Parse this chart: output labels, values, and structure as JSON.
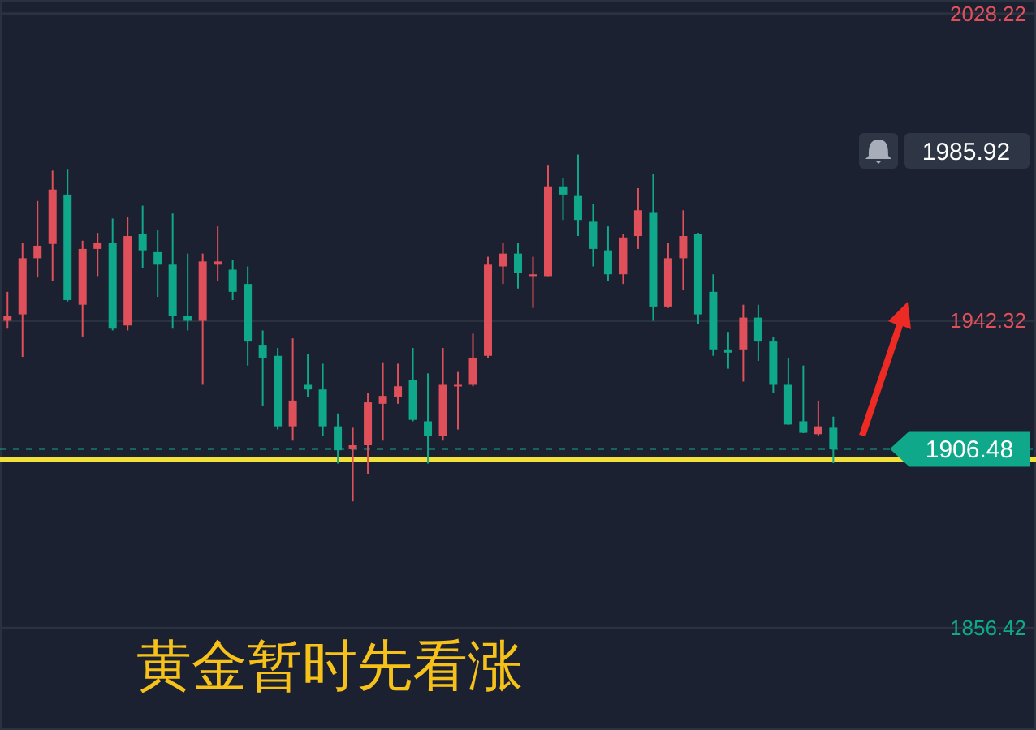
{
  "chart_data": {
    "type": "candlestick",
    "categories": [
      null,
      null,
      null,
      null,
      null,
      null,
      null,
      null,
      null,
      null,
      null,
      null,
      null,
      null,
      null,
      null,
      null,
      null,
      null,
      null,
      null,
      null,
      null,
      null,
      null,
      null,
      null,
      null,
      null,
      null,
      null,
      null,
      null,
      null,
      null,
      null,
      null,
      null,
      null,
      null,
      null,
      null,
      null,
      null,
      null,
      null,
      null,
      null,
      null,
      null,
      null,
      null,
      null,
      null,
      null,
      null,
      null,
      null,
      null,
      null,
      null,
      null,
      null,
      null,
      null,
      null,
      null,
      null,
      null
    ],
    "ohlc": [
      [
        1942.3,
        1950.4,
        1940.1,
        1943.7
      ],
      [
        1944.1,
        1964.2,
        1932.2,
        1959.8
      ],
      [
        1959.8,
        1975.8,
        1954.4,
        1963.3
      ],
      [
        1963.8,
        1984.3,
        1953.5,
        1979.0
      ],
      [
        1977.6,
        1984.8,
        1947.7,
        1948.1
      ],
      [
        1946.8,
        1964.7,
        1937.9,
        1962.4
      ],
      [
        1962.4,
        1966.9,
        1954.8,
        1964.2
      ],
      [
        1964.2,
        1970.9,
        1939.6,
        1940.1
      ],
      [
        1941.0,
        1971.4,
        1939.6,
        1966.0
      ],
      [
        1966.5,
        1974.5,
        1957.1,
        1962.0
      ],
      [
        1961.5,
        1967.8,
        1949.0,
        1958.0
      ],
      [
        1958.0,
        1972.3,
        1940.1,
        1943.7
      ],
      [
        1943.7,
        1961.1,
        1939.6,
        1942.3
      ],
      [
        1942.3,
        1961.1,
        1924.4,
        1958.9
      ],
      [
        1958.0,
        1968.7,
        1953.5,
        1958.9
      ],
      [
        1956.6,
        1959.3,
        1948.1,
        1950.4
      ],
      [
        1952.6,
        1957.5,
        1929.8,
        1936.5
      ],
      [
        1935.6,
        1939.6,
        1918.6,
        1932.0
      ],
      [
        1932.5,
        1934.7,
        1911.9,
        1912.8
      ],
      [
        1912.8,
        1937.4,
        1908.8,
        1920.0
      ],
      [
        1924.4,
        1932.9,
        1920.9,
        1923.1
      ],
      [
        1923.1,
        1930.3,
        1910.1,
        1912.8
      ],
      [
        1912.8,
        1916.4,
        1902.4,
        1906.1
      ],
      [
        1906.6,
        1912.4,
        1891.8,
        1907.5
      ],
      [
        1907.5,
        1922.2,
        1899.4,
        1919.5
      ],
      [
        1919.1,
        1930.7,
        1908.8,
        1921.3
      ],
      [
        1920.9,
        1930.3,
        1919.1,
        1924.0
      ],
      [
        1925.8,
        1934.7,
        1914.2,
        1914.6
      ],
      [
        1914.2,
        1927.6,
        1902.4,
        1910.1
      ],
      [
        1910.1,
        1934.7,
        1908.8,
        1924.4
      ],
      [
        1924.0,
        1928.0,
        1911.9,
        1924.4
      ],
      [
        1924.4,
        1938.7,
        1924.0,
        1932.0
      ],
      [
        1932.5,
        1960.2,
        1932.0,
        1958.0
      ],
      [
        1957.5,
        1964.2,
        1952.6,
        1961.1
      ],
      [
        1961.1,
        1964.2,
        1951.3,
        1955.7
      ],
      [
        1954.8,
        1960.2,
        1945.9,
        1955.3
      ],
      [
        1954.8,
        1985.7,
        1954.8,
        1979.9
      ],
      [
        1979.9,
        1982.1,
        1970.5,
        1977.6
      ],
      [
        1977.2,
        1988.8,
        1966.0,
        1970.5
      ],
      [
        1970.0,
        1975.0,
        1957.5,
        1962.4
      ],
      [
        1962.0,
        1968.7,
        1953.5,
        1955.3
      ],
      [
        1955.3,
        1966.5,
        1952.6,
        1965.6
      ],
      [
        1966.0,
        1979.4,
        1962.4,
        1973.2
      ],
      [
        1972.7,
        1983.4,
        1942.3,
        1946.3
      ],
      [
        1946.3,
        1964.2,
        1945.9,
        1959.8
      ],
      [
        1959.8,
        1973.2,
        1950.8,
        1966.0
      ],
      [
        1966.5,
        1966.9,
        1941.4,
        1944.1
      ],
      [
        1950.4,
        1955.3,
        1932.5,
        1934.3
      ],
      [
        1934.3,
        1939.2,
        1928.9,
        1933.4
      ],
      [
        1934.3,
        1946.8,
        1925.3,
        1943.2
      ],
      [
        1943.2,
        1946.8,
        1931.1,
        1936.5
      ],
      [
        1936.5,
        1937.9,
        1922.2,
        1924.4
      ],
      [
        1924.4,
        1932.0,
        1913.2,
        1913.3
      ],
      [
        1914.2,
        1929.8,
        1910.9,
        1911.0
      ],
      [
        1910.6,
        1920.0,
        1910.1,
        1912.8
      ],
      [
        1912.4,
        1915.5,
        1902.5,
        1906.5
      ],
      null,
      null,
      null,
      null,
      null,
      null,
      null,
      null,
      null,
      null,
      null,
      null,
      null
    ],
    "colors": [
      "#e0505a",
      "#e0505a",
      "#e0505a",
      "#e0505a",
      "#0fa88a",
      "#e0505a",
      "#e0505a",
      "#0fa88a",
      "#e0505a",
      "#0fa88a",
      "#0fa88a",
      "#0fa88a",
      "#0fa88a",
      "#e0505a",
      "#e0505a",
      "#0fa88a",
      "#0fa88a",
      "#0fa88a",
      "#0fa88a",
      "#e0505a",
      "#0fa88a",
      "#0fa88a",
      "#0fa88a",
      "#e0505a",
      "#e0505a",
      "#e0505a",
      "#e0505a",
      "#0fa88a",
      "#0fa88a",
      "#e0505a",
      "#e0505a",
      "#e0505a",
      "#e0505a",
      "#e0505a",
      "#0fa88a",
      "#e0505a",
      "#e0505a",
      "#0fa88a",
      "#0fa88a",
      "#0fa88a",
      "#0fa88a",
      "#e0505a",
      "#e0505a",
      "#0fa88a",
      "#e0505a",
      "#e0505a",
      "#0fa88a",
      "#0fa88a",
      "#0fa88a",
      "#e0505a",
      "#0fa88a",
      "#0fa88a",
      "#0fa88a",
      "#0fa88a",
      "#e0505a",
      "#0fa88a",
      null,
      null,
      null,
      null,
      null,
      null,
      null,
      null,
      null,
      null,
      null,
      null,
      null
    ],
    "ylim": [
      1827.9,
      2032.0
    ],
    "yticks": [
      2028.22,
      1942.32,
      1856.42
    ],
    "grid": "y",
    "ref_lines": [
      {
        "axis": "y",
        "value": 1903.5,
        "color": "#f2e13a"
      },
      {
        "axis": "y",
        "value": 1906.48,
        "label": "1906.48",
        "color": "#0fa88a",
        "line_style": "dashed"
      }
    ],
    "annotations": [
      "1985.92",
      "黄金暂时先看涨"
    ]
  }
}
